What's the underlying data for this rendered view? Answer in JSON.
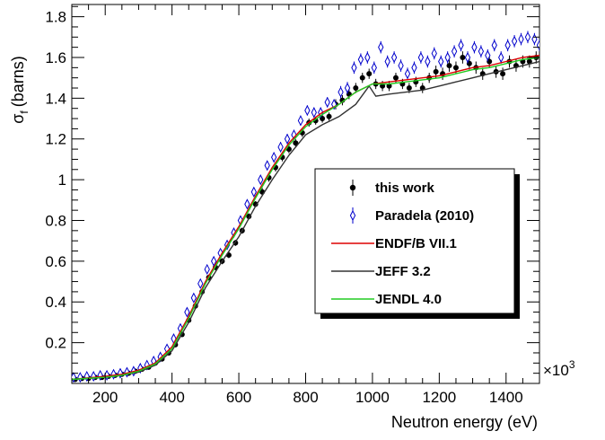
{
  "chart_data": {
    "type": "scatter",
    "title": "",
    "xlabel": "Neutron energy (eV)",
    "ylabel": "σ",
    "ylabel_sub": "f",
    "ylabel_unit": "(barns)",
    "x_multiplier": "×10",
    "x_multiplier_exp": "3",
    "xlim": [
      100,
      1500
    ],
    "ylim": [
      0,
      1.86
    ],
    "x_ticks": [
      200,
      400,
      600,
      800,
      1000,
      1200,
      1400
    ],
    "x_tick_labels": [
      "200",
      "400",
      "600",
      "800",
      "1000",
      "1200",
      "1400"
    ],
    "y_ticks": [
      0.2,
      0.4,
      0.6,
      0.8,
      1.0,
      1.2,
      1.4,
      1.6,
      1.8
    ],
    "y_tick_labels": [
      "0.2",
      "0.4",
      "0.6",
      "0.8",
      "1",
      "1.2",
      "1.4",
      "1.6",
      "1.8"
    ],
    "grid": false,
    "legend_position": "right",
    "series": [
      {
        "name": "this work",
        "kind": "points",
        "color": "#000000",
        "x": [
          110,
          130,
          150,
          170,
          190,
          210,
          230,
          250,
          270,
          290,
          310,
          330,
          350,
          370,
          390,
          410,
          430,
          450,
          470,
          490,
          510,
          530,
          550,
          570,
          590,
          610,
          630,
          650,
          670,
          690,
          710,
          730,
          750,
          770,
          790,
          810,
          830,
          850,
          870,
          890,
          910,
          930,
          950,
          970,
          990,
          1010,
          1030,
          1050,
          1070,
          1090,
          1110,
          1130,
          1150,
          1170,
          1190,
          1210,
          1230,
          1250,
          1270,
          1290,
          1310,
          1330,
          1350,
          1370,
          1390,
          1410,
          1430,
          1450,
          1470,
          1490
        ],
        "y": [
          0.02,
          0.025,
          0.025,
          0.03,
          0.03,
          0.035,
          0.04,
          0.045,
          0.05,
          0.06,
          0.07,
          0.08,
          0.1,
          0.12,
          0.15,
          0.19,
          0.24,
          0.31,
          0.38,
          0.45,
          0.52,
          0.57,
          0.6,
          0.63,
          0.69,
          0.75,
          0.82,
          0.88,
          0.94,
          1.01,
          1.06,
          1.11,
          1.15,
          1.18,
          1.23,
          1.28,
          1.29,
          1.3,
          1.31,
          1.37,
          1.39,
          1.42,
          1.45,
          1.5,
          1.52,
          1.47,
          1.46,
          1.46,
          1.5,
          1.47,
          1.45,
          1.48,
          1.45,
          1.5,
          1.53,
          1.52,
          1.56,
          1.55,
          1.6,
          1.57,
          1.55,
          1.52,
          1.58,
          1.53,
          1.52,
          1.58,
          1.56,
          1.58,
          1.58,
          1.6
        ],
        "yerr": [
          0.01,
          0.01,
          0.01,
          0.01,
          0.01,
          0.01,
          0.01,
          0.01,
          0.01,
          0.01,
          0.01,
          0.01,
          0.01,
          0.01,
          0.01,
          0.01,
          0.01,
          0.01,
          0.01,
          0.01,
          0.015,
          0.015,
          0.015,
          0.015,
          0.015,
          0.015,
          0.015,
          0.015,
          0.02,
          0.02,
          0.02,
          0.02,
          0.02,
          0.02,
          0.02,
          0.02,
          0.02,
          0.02,
          0.02,
          0.025,
          0.025,
          0.025,
          0.025,
          0.025,
          0.025,
          0.025,
          0.025,
          0.025,
          0.025,
          0.025,
          0.025,
          0.025,
          0.025,
          0.025,
          0.03,
          0.03,
          0.03,
          0.03,
          0.03,
          0.03,
          0.03,
          0.03,
          0.03,
          0.03,
          0.03,
          0.03,
          0.03,
          0.03,
          0.03,
          0.03
        ]
      },
      {
        "name": "Paradela (2010)",
        "kind": "diamonds",
        "color": "#0000cc",
        "x": [
          105,
          125,
          145,
          165,
          185,
          205,
          225,
          245,
          265,
          285,
          305,
          325,
          345,
          365,
          385,
          405,
          425,
          445,
          465,
          485,
          505,
          525,
          545,
          565,
          585,
          605,
          625,
          645,
          665,
          685,
          705,
          725,
          745,
          765,
          785,
          805,
          825,
          845,
          865,
          885,
          905,
          925,
          945,
          965,
          985,
          1005,
          1025,
          1045,
          1065,
          1085,
          1105,
          1125,
          1145,
          1165,
          1185,
          1205,
          1225,
          1245,
          1265,
          1285,
          1305,
          1325,
          1345,
          1365,
          1385,
          1405,
          1425,
          1445,
          1465,
          1485,
          1500
        ],
        "y": [
          0.03,
          0.03,
          0.035,
          0.035,
          0.04,
          0.04,
          0.045,
          0.05,
          0.055,
          0.06,
          0.075,
          0.09,
          0.11,
          0.13,
          0.17,
          0.22,
          0.27,
          0.35,
          0.42,
          0.49,
          0.56,
          0.6,
          0.64,
          0.68,
          0.74,
          0.8,
          0.88,
          0.94,
          1.0,
          1.07,
          1.11,
          1.16,
          1.2,
          1.22,
          1.29,
          1.34,
          1.33,
          1.33,
          1.38,
          1.37,
          1.43,
          1.45,
          1.55,
          1.59,
          1.6,
          1.55,
          1.65,
          1.58,
          1.6,
          1.56,
          1.52,
          1.55,
          1.6,
          1.58,
          1.62,
          1.58,
          1.6,
          1.63,
          1.66,
          1.6,
          1.65,
          1.63,
          1.61,
          1.66,
          1.6,
          1.66,
          1.68,
          1.69,
          1.7,
          1.69,
          1.66
        ],
        "yerr": [
          0.01,
          0.01,
          0.01,
          0.01,
          0.01,
          0.01,
          0.01,
          0.01,
          0.01,
          0.01,
          0.01,
          0.01,
          0.01,
          0.01,
          0.01,
          0.015,
          0.015,
          0.015,
          0.015,
          0.015,
          0.02,
          0.02,
          0.02,
          0.02,
          0.02,
          0.02,
          0.02,
          0.02,
          0.02,
          0.02,
          0.025,
          0.025,
          0.025,
          0.025,
          0.025,
          0.025,
          0.025,
          0.025,
          0.025,
          0.025,
          0.03,
          0.03,
          0.03,
          0.03,
          0.03,
          0.03,
          0.03,
          0.03,
          0.03,
          0.03,
          0.03,
          0.03,
          0.03,
          0.03,
          0.03,
          0.03,
          0.03,
          0.03,
          0.03,
          0.03,
          0.03,
          0.03,
          0.03,
          0.03,
          0.03,
          0.03,
          0.03,
          0.03,
          0.03,
          0.03,
          0.03
        ]
      },
      {
        "name": "ENDF/B VII.1",
        "kind": "line",
        "color": "#dd0000",
        "x": [
          100,
          200,
          250,
          300,
          350,
          400,
          450,
          500,
          550,
          600,
          650,
          700,
          750,
          800,
          850,
          900,
          950,
          1000,
          1050,
          1100,
          1150,
          1200,
          1250,
          1300,
          1350,
          1400,
          1450,
          1500
        ],
        "y": [
          0.02,
          0.035,
          0.045,
          0.065,
          0.1,
          0.18,
          0.33,
          0.5,
          0.64,
          0.77,
          0.92,
          1.06,
          1.18,
          1.27,
          1.33,
          1.37,
          1.43,
          1.47,
          1.48,
          1.49,
          1.5,
          1.51,
          1.53,
          1.55,
          1.56,
          1.58,
          1.6,
          1.61
        ]
      },
      {
        "name": "JEFF 3.2",
        "kind": "line",
        "color": "#333333",
        "x": [
          100,
          200,
          250,
          300,
          350,
          400,
          450,
          500,
          550,
          600,
          650,
          700,
          750,
          800,
          850,
          900,
          950,
          990,
          1010,
          1050,
          1100,
          1150,
          1200,
          1250,
          1300,
          1350,
          1400,
          1450,
          1500
        ],
        "y": [
          0.02,
          0.03,
          0.04,
          0.055,
          0.09,
          0.16,
          0.3,
          0.47,
          0.6,
          0.72,
          0.87,
          1.0,
          1.12,
          1.22,
          1.27,
          1.31,
          1.37,
          1.46,
          1.41,
          1.42,
          1.43,
          1.44,
          1.46,
          1.48,
          1.5,
          1.52,
          1.54,
          1.56,
          1.58
        ]
      },
      {
        "name": "JENDL 4.0",
        "kind": "line",
        "color": "#22cc22",
        "x": [
          100,
          200,
          250,
          300,
          350,
          400,
          450,
          500,
          550,
          600,
          650,
          700,
          750,
          800,
          850,
          900,
          950,
          1000,
          1050,
          1100,
          1150,
          1200,
          1250,
          1300,
          1350,
          1400,
          1450,
          1500
        ],
        "y": [
          0.02,
          0.03,
          0.04,
          0.06,
          0.095,
          0.17,
          0.32,
          0.49,
          0.63,
          0.76,
          0.91,
          1.05,
          1.17,
          1.26,
          1.32,
          1.37,
          1.43,
          1.47,
          1.47,
          1.48,
          1.49,
          1.5,
          1.52,
          1.54,
          1.55,
          1.57,
          1.59,
          1.6
        ]
      }
    ]
  }
}
